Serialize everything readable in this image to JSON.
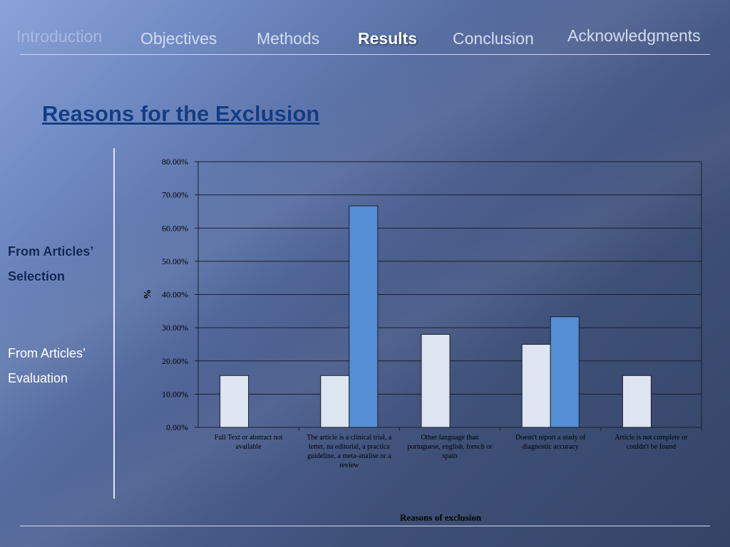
{
  "nav": {
    "items": [
      {
        "label": "Introduction"
      },
      {
        "label": "Objectives"
      },
      {
        "label": "Methods"
      },
      {
        "label": "Results"
      },
      {
        "label": "Conclusion"
      },
      {
        "label": "Acknowledgments"
      }
    ],
    "active": "Results"
  },
  "page_title": "Reasons for the Exclusion",
  "sidebar": {
    "selection_line1": "From Articles’",
    "selection_line2": "Selection",
    "evaluation_line1": "From Articles’",
    "evaluation_line2": "Evaluation"
  },
  "colors": {
    "series_selection": "#dce5f0",
    "series_evaluation": "#5590d6",
    "title": "#133c86"
  },
  "chart_data": {
    "type": "bar",
    "categories": [
      [
        "Full Text or abstract not",
        "available"
      ],
      [
        "The article is a clinical trial, a",
        "letter, na editorial, a practica",
        "guideline, a meta-analise or a",
        "review"
      ],
      [
        "Other language than",
        "portuguese, english, french or",
        "spain"
      ],
      [
        "Doesn't report a study of",
        "diagnostic accuracy"
      ],
      [
        "Article is not complete or",
        "couldn't be found"
      ]
    ],
    "series": [
      {
        "values": [
          15.6,
          15.6,
          28.0,
          25.0,
          15.6
        ]
      },
      {
        "values": [
          null,
          66.7,
          null,
          33.3,
          null
        ]
      }
    ],
    "xlabel": "Reasons of exclusion",
    "ylabel": "%",
    "ylim": [
      0,
      80
    ],
    "yticks": [
      "0.00%",
      "10.00%",
      "20.00%",
      "30.00%",
      "40.00%",
      "50.00%",
      "60.00%",
      "70.00%",
      "80.00%"
    ],
    "grid": true,
    "legend": "none"
  }
}
